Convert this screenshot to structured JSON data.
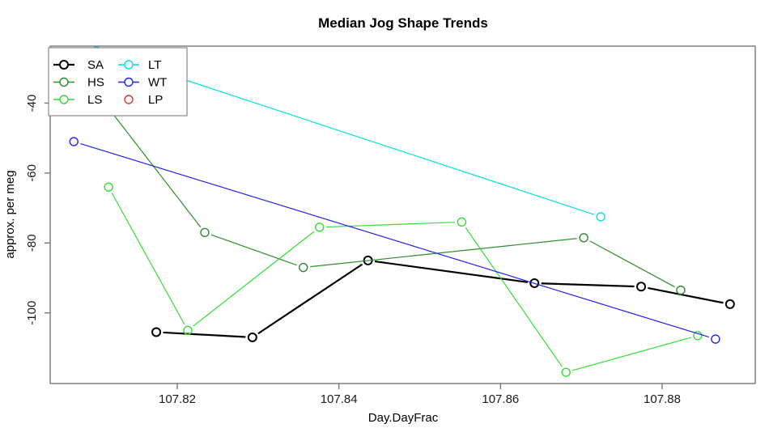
{
  "title": "Median Jog Shape Trends",
  "axes": {
    "xlabel": "Day.DayFrac",
    "ylabel": "approx. per meg",
    "x_tick_labels": [
      "107.82",
      "107.84",
      "107.86",
      "107.88"
    ],
    "y_tick_labels": [
      "-40",
      "-60",
      "-80",
      "-100"
    ]
  },
  "chart_data": {
    "type": "line",
    "title": "Median Jog Shape Trends",
    "xlabel": "Day.DayFrac",
    "ylabel": "approx. per meg",
    "x_ticks": [
      107.82,
      107.84,
      107.86,
      107.88
    ],
    "y_ticks": [
      -40,
      -60,
      -80,
      -100
    ],
    "xlim": [
      107.804,
      107.892
    ],
    "ylim": [
      -120,
      -23.7
    ],
    "grid": false,
    "legend_position": "topleft",
    "marker": "open-circle",
    "line_style": "points-with-segments (R type='b')",
    "series": [
      {
        "name": "SA",
        "color": "#000000",
        "line_width": 2.2,
        "legend_line": true,
        "x": [
          107.8174,
          107.8293,
          107.8436,
          107.8642,
          107.8774,
          107.8884
        ],
        "y": [
          -105.5,
          -107.0,
          -85.0,
          -91.5,
          -92.5,
          -97.5
        ]
      },
      {
        "name": "HS",
        "color": "#2E8B2E",
        "line_width": 1.2,
        "legend_line": true,
        "x": [
          107.808,
          107.8234,
          107.8356,
          107.8703,
          107.8823
        ],
        "y": [
          -31.0,
          -77.0,
          -87.0,
          -78.5,
          -93.5
        ]
      },
      {
        "name": "LS",
        "color": "#33DD33",
        "line_width": 1.2,
        "legend_line": true,
        "x": [
          107.8115,
          107.8213,
          107.8376,
          107.8552,
          107.8681,
          107.8844
        ],
        "y": [
          -64.0,
          -105.0,
          -75.5,
          -74.0,
          -117.0,
          -106.5
        ]
      },
      {
        "name": "LT",
        "color": "#00E0E8",
        "line_width": 1.2,
        "legend_line": true,
        "x": [
          107.81,
          107.8724
        ],
        "y": [
          -25.0,
          -72.5
        ]
      },
      {
        "name": "WT",
        "color": "#2222EE",
        "line_width": 1.2,
        "legend_line": true,
        "x": [
          107.8072,
          107.8866
        ],
        "y": [
          -51.0,
          -107.5
        ]
      },
      {
        "name": "LP",
        "color": "#E83030",
        "line_width": 1.2,
        "legend_line": false,
        "x": [],
        "y": []
      }
    ]
  }
}
